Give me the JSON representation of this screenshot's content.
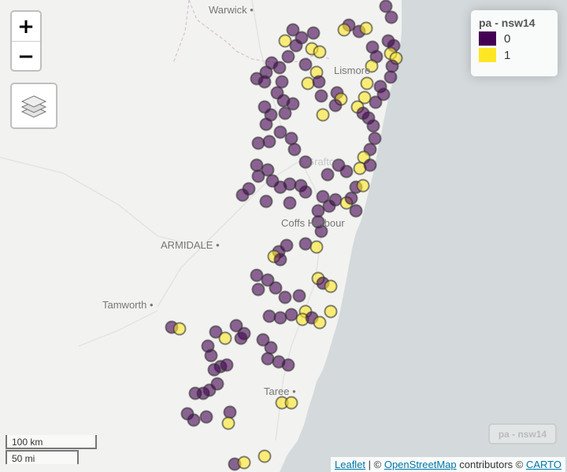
{
  "map": {
    "land_color": "#f2f2f0",
    "sea_color": "#d4dadc",
    "places": [
      {
        "name": "Warwick"
      },
      {
        "name": "Lismore"
      },
      {
        "name": "Grafton"
      },
      {
        "name": "Coffs Harbour"
      },
      {
        "name": "ARMIDALE"
      },
      {
        "name": "Tamworth"
      },
      {
        "name": "Taree"
      }
    ]
  },
  "controls": {
    "zoom_in": "+",
    "zoom_out": "−",
    "layers_icon": "layers-icon"
  },
  "legend": {
    "title": "pa - nsw14",
    "items": [
      {
        "label": "0",
        "color": "#440154"
      },
      {
        "label": "1",
        "color": "#FDE725"
      }
    ]
  },
  "layer_badge": "pa - nsw14",
  "scale": {
    "km": "100 km",
    "mi": "50 mi"
  },
  "attribution": {
    "leaflet": "Leaflet",
    "sep1": " | © ",
    "osm": "OpenStreetMap",
    "sep2": " contributors © ",
    "carto": "CARTO"
  },
  "points": {
    "purple": "#440154",
    "yellow": "#FDE725",
    "stroke": "#333333"
  }
}
